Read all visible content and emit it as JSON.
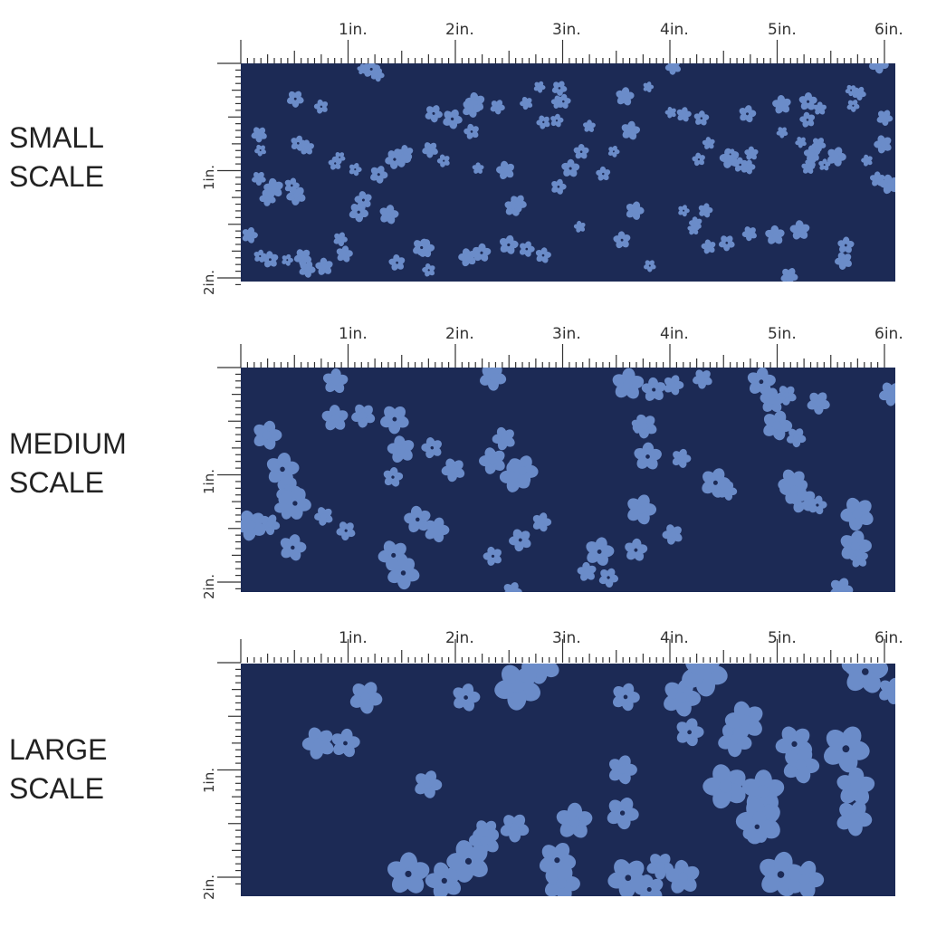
{
  "colors": {
    "background": "#1c2a55",
    "flower": "#6b8cc9",
    "center": "#1c2a55",
    "ruler": "#333333"
  },
  "ruler": {
    "horizontal_labels": [
      "1in.",
      "2in.",
      "3in.",
      "4in.",
      "5in.",
      "6in."
    ],
    "vertical_labels": [
      "1in.",
      "2in."
    ]
  },
  "panels": [
    {
      "id": "small",
      "line1": "SMALL",
      "line2": "SCALE",
      "flower_scale": 0.5,
      "seed": 7,
      "count": 120
    },
    {
      "id": "medium",
      "line1": "MEDIUM",
      "line2": "SCALE",
      "flower_scale": 0.85,
      "seed": 23,
      "count": 62
    },
    {
      "id": "large",
      "line1": "LARGE",
      "line2": "SCALE",
      "flower_scale": 1.2,
      "seed": 51,
      "count": 42
    }
  ]
}
